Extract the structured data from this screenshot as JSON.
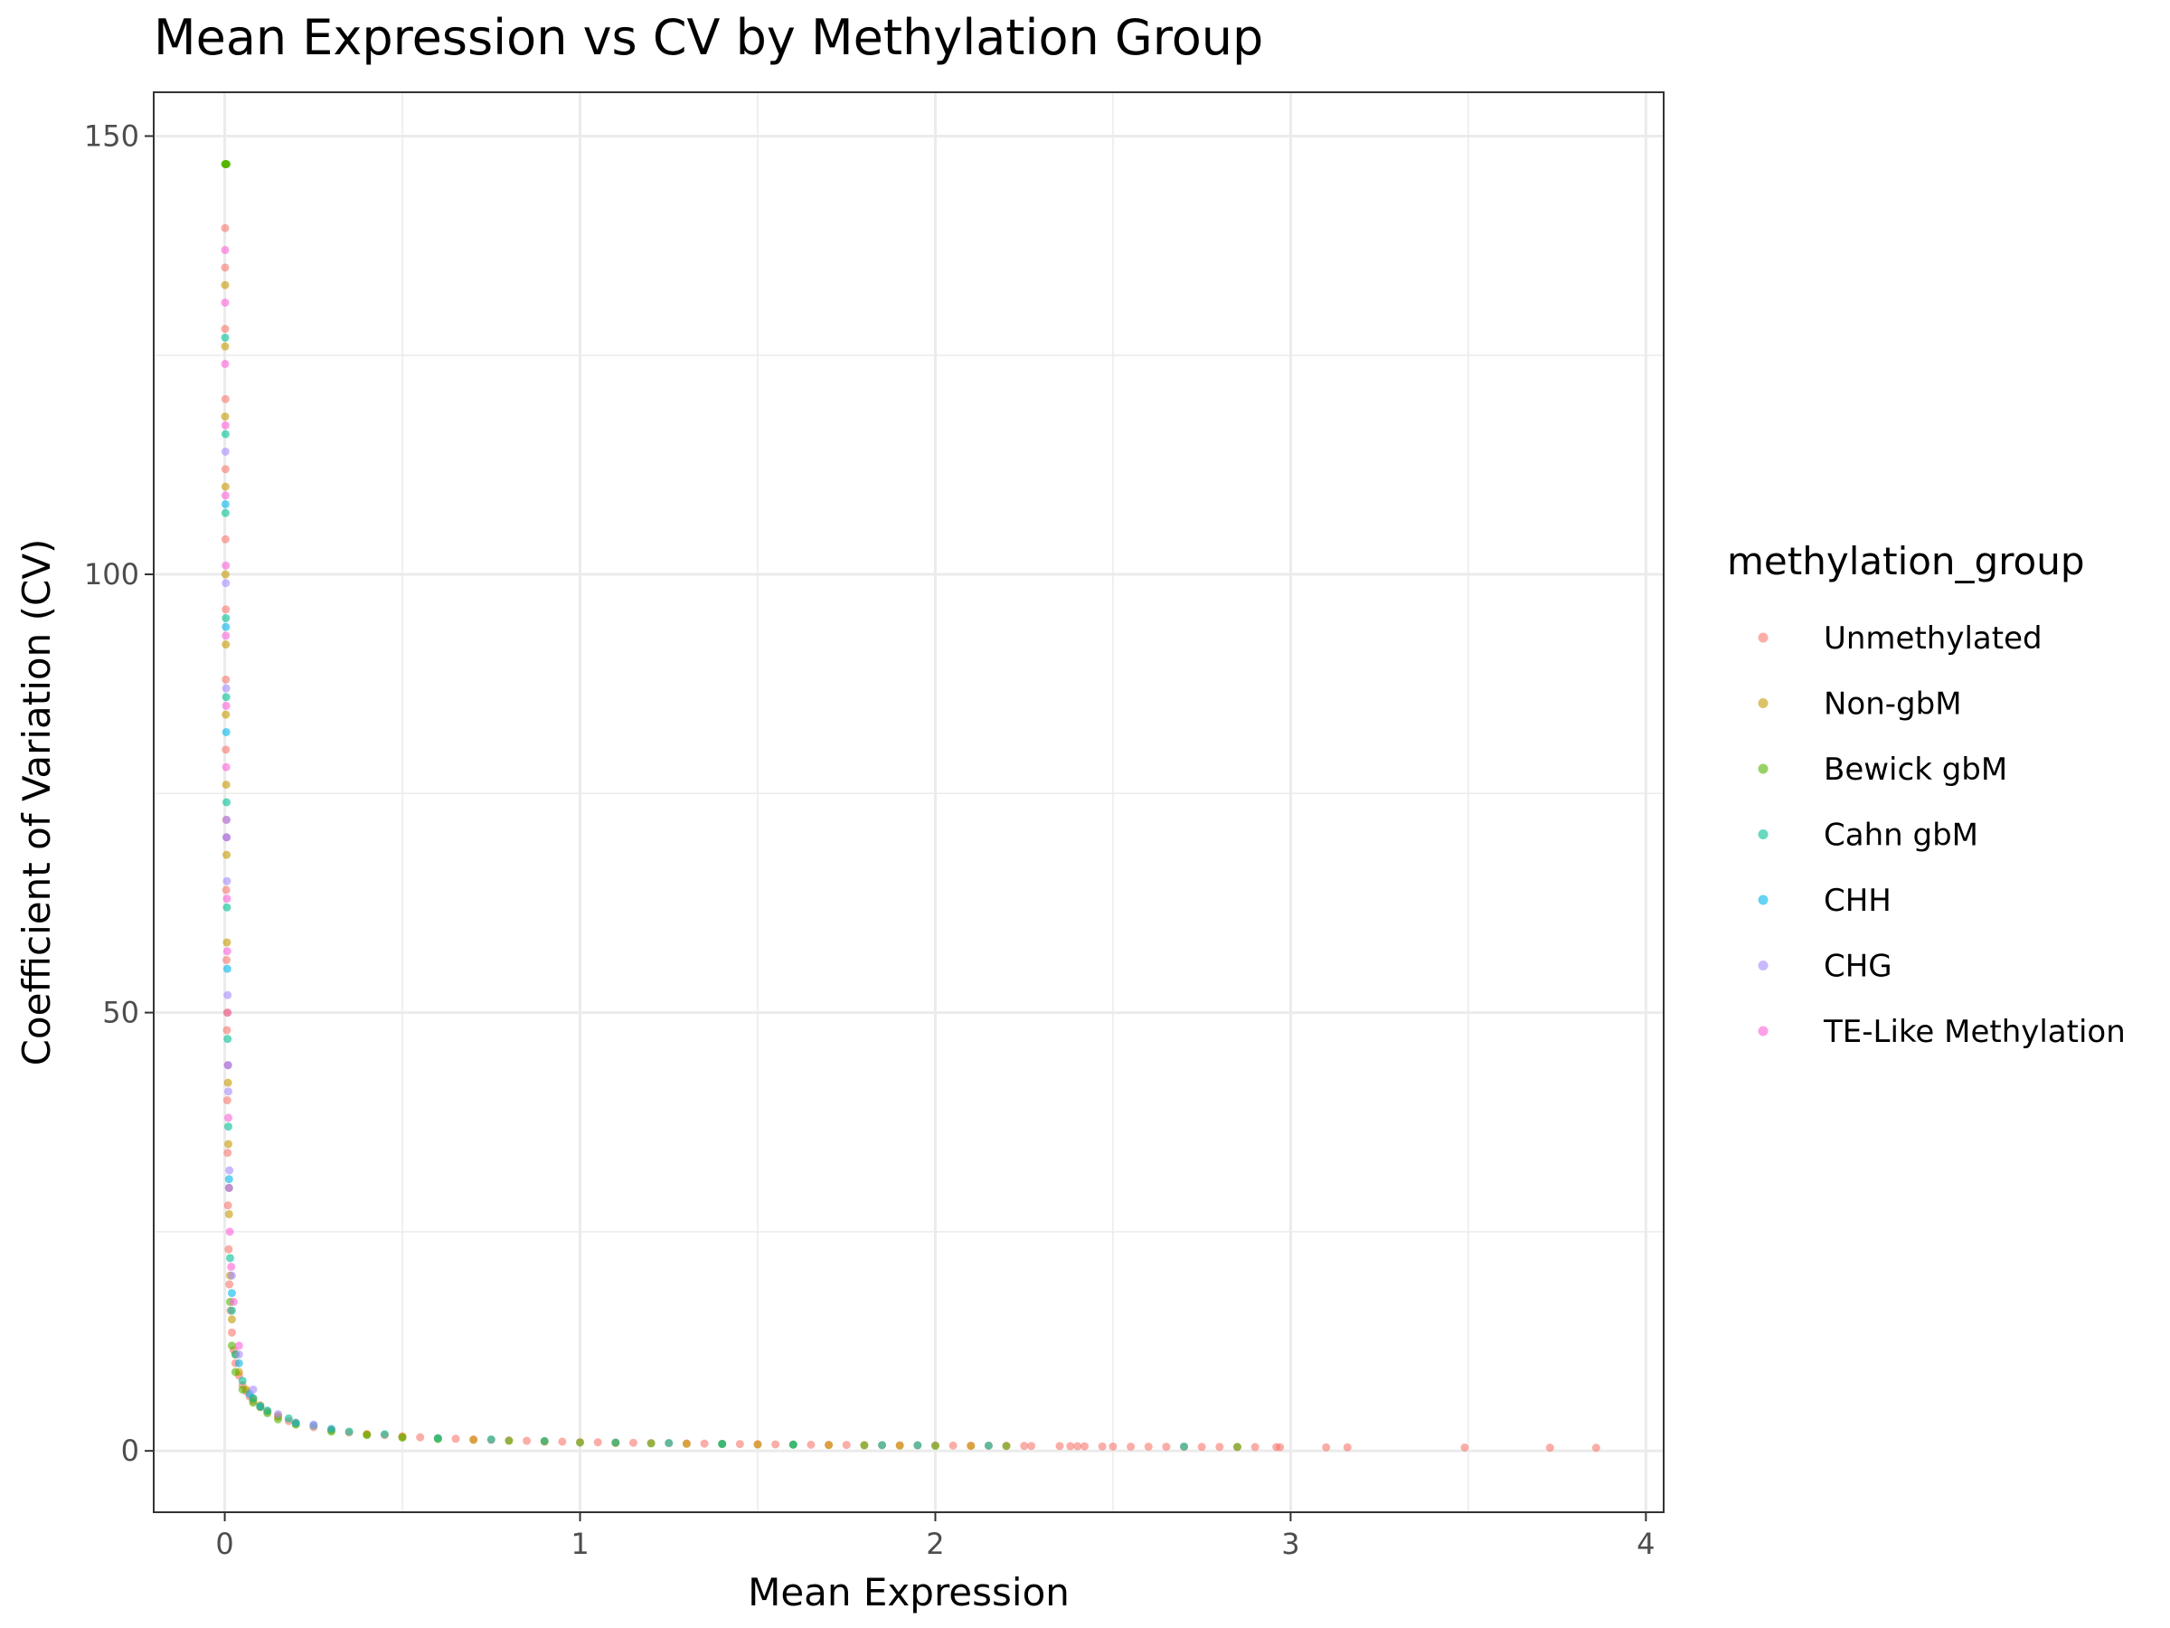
{
  "chart_data": {
    "type": "scatter",
    "title": "Mean Expression vs CV by Methylation Group",
    "xlabel": "Mean Expression",
    "ylabel": "Coefficient of Variation (CV)",
    "xlim": [
      -0.2,
      4.05
    ],
    "ylim": [
      -7,
      155
    ],
    "x_ticks": [
      0,
      1,
      2,
      3,
      4
    ],
    "y_ticks": [
      0,
      50,
      100,
      150
    ],
    "grid": true,
    "legend": {
      "title": "methylation_group",
      "placement": "right",
      "entries": [
        {
          "name": "Unmethylated",
          "color": "#F8766D"
        },
        {
          "name": "Non-gbM",
          "color": "#C49A00"
        },
        {
          "name": "Bewick gbM",
          "color": "#53B400"
        },
        {
          "name": "Cahn gbM",
          "color": "#00C094"
        },
        {
          "name": "CHH",
          "color": "#00B6EB"
        },
        {
          "name": "CHG",
          "color": "#A58AFF"
        },
        {
          "name": "TE-Like Methylation",
          "color": "#FB61D7"
        }
      ]
    },
    "series": [
      {
        "name": "Unmethylated",
        "color": "#F8766D",
        "points": [
          [
            0.001,
            139.5
          ],
          [
            0.001,
            135
          ],
          [
            0.001,
            128
          ],
          [
            0.002,
            120
          ],
          [
            0.002,
            112
          ],
          [
            0.002,
            104
          ],
          [
            0.003,
            96
          ],
          [
            0.003,
            88
          ],
          [
            0.003,
            80
          ],
          [
            0.004,
            72
          ],
          [
            0.004,
            64
          ],
          [
            0.005,
            56
          ],
          [
            0.006,
            48
          ],
          [
            0.007,
            40
          ],
          [
            0.008,
            34
          ],
          [
            0.009,
            28
          ],
          [
            0.011,
            23
          ],
          [
            0.013,
            19
          ],
          [
            0.016,
            16
          ],
          [
            0.02,
            13.5
          ],
          [
            0.025,
            11.5
          ],
          [
            0.03,
            10
          ],
          [
            0.04,
            8.6
          ],
          [
            0.05,
            7.5
          ],
          [
            0.06,
            6.8
          ],
          [
            0.07,
            6.2
          ],
          [
            0.08,
            5.7
          ],
          [
            0.1,
            5
          ],
          [
            0.12,
            4.5
          ],
          [
            0.15,
            3.9
          ],
          [
            0.18,
            3.4
          ],
          [
            0.2,
            3.1
          ],
          [
            0.25,
            2.7
          ],
          [
            0.3,
            2.4
          ],
          [
            0.35,
            2.1
          ],
          [
            0.4,
            1.9
          ],
          [
            0.45,
            1.8
          ],
          [
            0.5,
            1.65
          ],
          [
            0.55,
            1.55
          ],
          [
            0.6,
            1.45
          ],
          [
            0.65,
            1.38
          ],
          [
            0.7,
            1.3
          ],
          [
            0.75,
            1.25
          ],
          [
            0.8,
            1.2
          ],
          [
            0.85,
            1.15
          ],
          [
            0.9,
            1.1
          ],
          [
            0.95,
            1.05
          ],
          [
            1.0,
            1.0
          ],
          [
            1.05,
            0.98
          ],
          [
            1.1,
            0.95
          ],
          [
            1.15,
            0.92
          ],
          [
            1.2,
            0.9
          ],
          [
            1.25,
            0.88
          ],
          [
            1.3,
            0.85
          ],
          [
            1.35,
            0.83
          ],
          [
            1.4,
            0.8
          ],
          [
            1.45,
            0.78
          ],
          [
            1.5,
            0.76
          ],
          [
            1.55,
            0.74
          ],
          [
            1.6,
            0.72
          ],
          [
            1.65,
            0.7
          ],
          [
            1.7,
            0.69
          ],
          [
            1.75,
            0.68
          ],
          [
            1.8,
            0.66
          ],
          [
            1.85,
            0.65
          ],
          [
            1.9,
            0.64
          ],
          [
            1.95,
            0.63
          ],
          [
            2.0,
            0.62
          ],
          [
            2.05,
            0.61
          ],
          [
            2.1,
            0.6
          ],
          [
            2.15,
            0.59
          ],
          [
            2.2,
            0.58
          ],
          [
            2.25,
            0.57
          ],
          [
            2.27,
            0.56
          ],
          [
            2.35,
            0.55
          ],
          [
            2.38,
            0.54
          ],
          [
            2.4,
            0.53
          ],
          [
            2.42,
            0.52
          ],
          [
            2.47,
            0.5
          ],
          [
            2.5,
            0.5
          ],
          [
            2.55,
            0.48
          ],
          [
            2.6,
            0.48
          ],
          [
            2.65,
            0.47
          ],
          [
            2.7,
            0.46
          ],
          [
            2.75,
            0.45
          ],
          [
            2.8,
            0.45
          ],
          [
            2.85,
            0.44
          ],
          [
            2.9,
            0.44
          ],
          [
            2.96,
            0.43
          ],
          [
            2.97,
            0.42
          ],
          [
            3.1,
            0.4
          ],
          [
            3.16,
            0.4
          ],
          [
            3.49,
            0.38
          ],
          [
            3.73,
            0.36
          ],
          [
            3.86,
            0.35
          ]
        ]
      },
      {
        "name": "Non-gbM",
        "color": "#C49A00",
        "points": [
          [
            0.001,
            133
          ],
          [
            0.001,
            126
          ],
          [
            0.001,
            118
          ],
          [
            0.002,
            110
          ],
          [
            0.002,
            100
          ],
          [
            0.003,
            92
          ],
          [
            0.003,
            84
          ],
          [
            0.004,
            76
          ],
          [
            0.005,
            68
          ],
          [
            0.006,
            58
          ],
          [
            0.007,
            50
          ],
          [
            0.009,
            42
          ],
          [
            0.01,
            35
          ],
          [
            0.012,
            27
          ],
          [
            0.015,
            20
          ],
          [
            0.02,
            15
          ],
          [
            0.03,
            11
          ],
          [
            0.04,
            9
          ],
          [
            0.06,
            7
          ],
          [
            0.08,
            6
          ],
          [
            0.1,
            5.2
          ],
          [
            0.15,
            4.0
          ],
          [
            0.2,
            3.2
          ],
          [
            0.3,
            2.4
          ],
          [
            0.4,
            1.9
          ],
          [
            0.5,
            1.6
          ],
          [
            0.7,
            1.25
          ],
          [
            0.9,
            1.05
          ],
          [
            1.1,
            0.9
          ],
          [
            1.3,
            0.8
          ],
          [
            1.5,
            0.72
          ],
          [
            1.7,
            0.66
          ],
          [
            1.9,
            0.6
          ],
          [
            2.1,
            0.56
          ]
        ]
      },
      {
        "name": "Bewick gbM",
        "color": "#53B400",
        "points": [
          [
            0.001,
            146.8
          ],
          [
            0.002,
            146.8
          ],
          [
            0.003,
            146.8
          ],
          [
            0.004,
            146.8
          ],
          [
            0.005,
            146.8
          ],
          [
            0.015,
            17
          ],
          [
            0.02,
            12
          ],
          [
            0.03,
            9
          ],
          [
            0.05,
            7
          ],
          [
            0.08,
            5.5
          ],
          [
            0.1,
            5
          ],
          [
            0.12,
            4.3
          ],
          [
            0.15,
            3.6
          ],
          [
            0.2,
            3
          ],
          [
            0.3,
            2.2
          ],
          [
            0.4,
            1.8
          ],
          [
            0.5,
            1.5
          ],
          [
            0.6,
            1.35
          ],
          [
            0.8,
            1.15
          ],
          [
            1.0,
            0.95
          ],
          [
            1.2,
            0.85
          ],
          [
            1.4,
            0.78
          ],
          [
            1.6,
            0.7
          ],
          [
            1.8,
            0.63
          ],
          [
            2.0,
            0.58
          ],
          [
            2.2,
            0.55
          ],
          [
            2.85,
            0.45
          ]
        ]
      },
      {
        "name": "Cahn gbM",
        "color": "#00C094",
        "points": [
          [
            0.001,
            127
          ],
          [
            0.002,
            116
          ],
          [
            0.002,
            107
          ],
          [
            0.003,
            95
          ],
          [
            0.004,
            86
          ],
          [
            0.005,
            74
          ],
          [
            0.006,
            62
          ],
          [
            0.008,
            47
          ],
          [
            0.01,
            37
          ],
          [
            0.012,
            30
          ],
          [
            0.015,
            22
          ],
          [
            0.02,
            16
          ],
          [
            0.03,
            11
          ],
          [
            0.05,
            8
          ],
          [
            0.08,
            6
          ],
          [
            0.12,
            4.6
          ],
          [
            0.18,
            3.7
          ],
          [
            0.25,
            2.9
          ],
          [
            0.35,
            2.2
          ],
          [
            0.45,
            1.9
          ],
          [
            0.6,
            1.45
          ],
          [
            0.75,
            1.3
          ],
          [
            0.9,
            1.12
          ],
          [
            1.1,
            0.95
          ],
          [
            1.25,
            0.9
          ],
          [
            1.4,
            0.8
          ],
          [
            1.6,
            0.73
          ],
          [
            1.85,
            0.66
          ],
          [
            1.95,
            0.64
          ],
          [
            2.15,
            0.6
          ],
          [
            2.7,
            0.5
          ]
        ]
      },
      {
        "name": "CHH",
        "color": "#00B6EB",
        "points": [
          [
            0.002,
            108
          ],
          [
            0.003,
            94
          ],
          [
            0.004,
            82
          ],
          [
            0.005,
            70
          ],
          [
            0.007,
            55
          ],
          [
            0.009,
            44
          ],
          [
            0.012,
            31
          ],
          [
            0.02,
            18
          ],
          [
            0.04,
            10
          ],
          [
            0.07,
            6.5
          ],
          [
            0.1,
            5.1
          ],
          [
            0.2,
            3.2
          ],
          [
            0.3,
            2.5
          ]
        ]
      },
      {
        "name": "CHG",
        "color": "#A58AFF",
        "points": [
          [
            0.002,
            114
          ],
          [
            0.003,
            99
          ],
          [
            0.004,
            87
          ],
          [
            0.005,
            72
          ],
          [
            0.006,
            65
          ],
          [
            0.008,
            52
          ],
          [
            0.01,
            41
          ],
          [
            0.013,
            32
          ],
          [
            0.02,
            20
          ],
          [
            0.04,
            11
          ],
          [
            0.08,
            7
          ],
          [
            0.15,
            4.2
          ],
          [
            0.25,
            3
          ]
        ]
      },
      {
        "name": "TE-Like Methylation",
        "color": "#FB61D7",
        "points": [
          [
            0.001,
            137
          ],
          [
            0.001,
            131
          ],
          [
            0.001,
            124
          ],
          [
            0.002,
            117
          ],
          [
            0.002,
            109
          ],
          [
            0.003,
            101
          ],
          [
            0.003,
            93
          ],
          [
            0.004,
            85
          ],
          [
            0.004,
            78
          ],
          [
            0.005,
            70
          ],
          [
            0.006,
            63
          ],
          [
            0.007,
            57
          ],
          [
            0.008,
            50
          ],
          [
            0.009,
            44
          ],
          [
            0.01,
            38
          ],
          [
            0.012,
            30
          ],
          [
            0.014,
            25
          ],
          [
            0.018,
            21
          ],
          [
            0.025,
            17
          ],
          [
            0.04,
            12
          ]
        ]
      }
    ]
  }
}
